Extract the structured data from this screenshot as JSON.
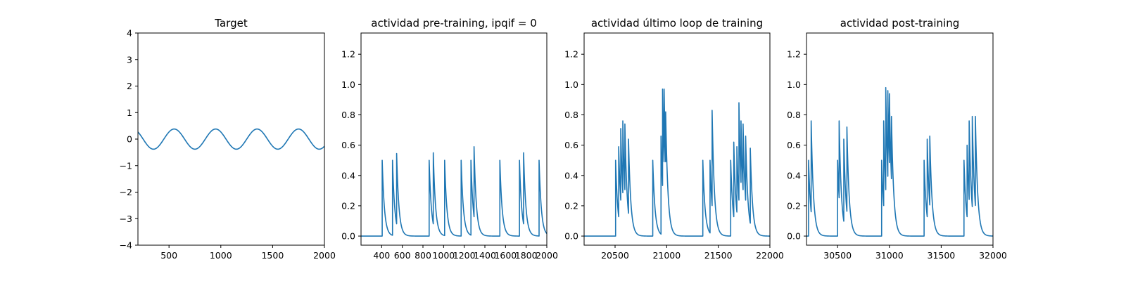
{
  "colors": {
    "line": "#1f77b4",
    "axes": "#000000",
    "background": "#ffffff"
  },
  "chart_data": [
    {
      "type": "line",
      "title": "Target",
      "xlim": [
        200,
        2000
      ],
      "ylim": [
        -4,
        4
      ],
      "xticks": [
        500,
        1000,
        1500,
        2000
      ],
      "yticks": [
        -4,
        -3,
        -2,
        -1,
        0,
        1,
        2,
        3,
        4
      ],
      "grid": false,
      "series": [
        {
          "signal": "sine",
          "amplitude": 0.38,
          "period": 400,
          "peak_x": 550,
          "x": [
            200,
            250,
            300,
            350,
            400,
            450,
            500,
            550,
            600,
            650,
            700,
            750,
            800,
            850,
            900,
            950,
            1000,
            1050,
            1100,
            1150,
            1200,
            1250,
            1300,
            1350,
            1400,
            1450,
            1500,
            1550,
            1600,
            1650,
            1700,
            1750,
            1800,
            1850,
            1900,
            1950,
            2000
          ],
          "y": [
            0.27,
            0.0,
            -0.27,
            -0.38,
            -0.27,
            0.0,
            0.27,
            0.38,
            0.27,
            0.0,
            -0.27,
            -0.38,
            -0.27,
            0.0,
            0.27,
            0.38,
            0.27,
            0.0,
            -0.27,
            -0.38,
            -0.27,
            0.0,
            0.27,
            0.38,
            0.27,
            0.0,
            -0.27,
            -0.38,
            -0.27,
            0.0,
            0.27,
            0.38,
            0.27,
            0.0,
            -0.27,
            -0.38,
            -0.27
          ]
        }
      ]
    },
    {
      "type": "line",
      "title": "actividad pre-training, ipqif = 0",
      "xlim": [
        200,
        2000
      ],
      "ylim": [
        -0.06,
        1.34
      ],
      "xticks": [
        400,
        600,
        800,
        1000,
        1200,
        1400,
        1600,
        1800,
        2000
      ],
      "yticks": [
        0.0,
        0.2,
        0.4,
        0.6,
        0.8,
        1.0,
        1.2
      ],
      "grid": false,
      "series": [
        {
          "signal": "spike_train",
          "decay": 22,
          "spikes": [
            {
              "x": 405,
              "y": 0.5
            },
            {
              "x": 505,
              "y": 0.5
            },
            {
              "x": 545,
              "y": 0.545
            },
            {
              "x": 860,
              "y": 0.5
            },
            {
              "x": 900,
              "y": 0.55
            },
            {
              "x": 1010,
              "y": 0.5
            },
            {
              "x": 1170,
              "y": 0.5
            },
            {
              "x": 1265,
              "y": 0.5
            },
            {
              "x": 1295,
              "y": 0.59
            },
            {
              "x": 1545,
              "y": 0.5
            },
            {
              "x": 1735,
              "y": 0.5
            },
            {
              "x": 1775,
              "y": 0.55
            },
            {
              "x": 1925,
              "y": 0.5
            }
          ]
        }
      ]
    },
    {
      "type": "line",
      "title": "actividad último loop de training",
      "xlim": [
        20200,
        22000
      ],
      "ylim": [
        -0.06,
        1.34
      ],
      "xticks": [
        20500,
        21000,
        21500,
        22000
      ],
      "yticks": [
        0.0,
        0.2,
        0.4,
        0.6,
        0.8,
        1.0,
        1.2
      ],
      "grid": false,
      "series": [
        {
          "signal": "spike_train",
          "decay": 22,
          "spikes": [
            {
              "x": 20505,
              "y": 0.5
            },
            {
              "x": 20535,
              "y": 0.59
            },
            {
              "x": 20555,
              "y": 0.71
            },
            {
              "x": 20575,
              "y": 0.76
            },
            {
              "x": 20595,
              "y": 0.74
            },
            {
              "x": 20630,
              "y": 0.64
            },
            {
              "x": 20865,
              "y": 0.5
            },
            {
              "x": 20945,
              "y": 0.66
            },
            {
              "x": 20960,
              "y": 0.97
            },
            {
              "x": 20975,
              "y": 0.97
            },
            {
              "x": 20990,
              "y": 0.82
            },
            {
              "x": 21350,
              "y": 0.5
            },
            {
              "x": 21420,
              "y": 0.5
            },
            {
              "x": 21440,
              "y": 0.83
            },
            {
              "x": 21620,
              "y": 0.5
            },
            {
              "x": 21650,
              "y": 0.62
            },
            {
              "x": 21680,
              "y": 0.59
            },
            {
              "x": 21700,
              "y": 0.88
            },
            {
              "x": 21720,
              "y": 0.76
            },
            {
              "x": 21740,
              "y": 0.74
            },
            {
              "x": 21765,
              "y": 0.66
            },
            {
              "x": 21810,
              "y": 0.58
            }
          ]
        }
      ]
    },
    {
      "type": "line",
      "title": "actividad post-training",
      "xlim": [
        30200,
        32000
      ],
      "ylim": [
        -0.06,
        1.34
      ],
      "xticks": [
        30500,
        31000,
        31500,
        32000
      ],
      "yticks": [
        0.0,
        0.2,
        0.4,
        0.6,
        0.8,
        1.0,
        1.2
      ],
      "grid": false,
      "series": [
        {
          "signal": "spike_train",
          "decay": 22,
          "spikes": [
            {
              "x": 30220,
              "y": 0.5
            },
            {
              "x": 30245,
              "y": 0.76
            },
            {
              "x": 30500,
              "y": 0.5
            },
            {
              "x": 30515,
              "y": 0.76
            },
            {
              "x": 30560,
              "y": 0.64
            },
            {
              "x": 30590,
              "y": 0.72
            },
            {
              "x": 30925,
              "y": 0.5
            },
            {
              "x": 30945,
              "y": 0.76
            },
            {
              "x": 30965,
              "y": 0.98
            },
            {
              "x": 30985,
              "y": 0.96
            },
            {
              "x": 31000,
              "y": 0.94
            },
            {
              "x": 31020,
              "y": 0.79
            },
            {
              "x": 31335,
              "y": 0.5
            },
            {
              "x": 31365,
              "y": 0.64
            },
            {
              "x": 31390,
              "y": 0.66
            },
            {
              "x": 31720,
              "y": 0.5
            },
            {
              "x": 31750,
              "y": 0.6
            },
            {
              "x": 31770,
              "y": 0.76
            },
            {
              "x": 31800,
              "y": 0.79
            },
            {
              "x": 31830,
              "y": 0.79
            }
          ]
        }
      ]
    }
  ]
}
